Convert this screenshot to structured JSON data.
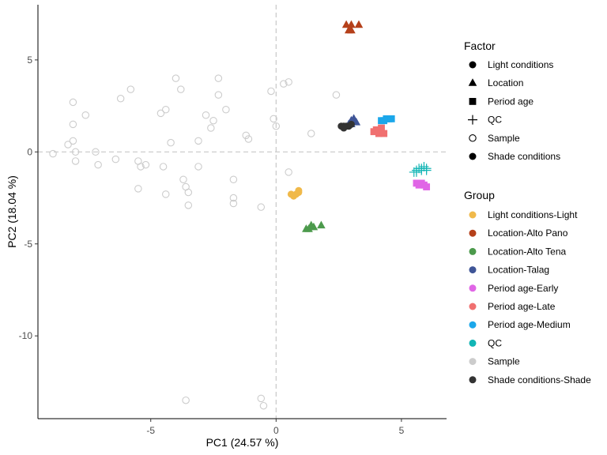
{
  "chart_data": {
    "type": "scatter",
    "title": "",
    "xlabel": "PC1 (24.57 %)",
    "ylabel": "PC2 (18.04 %)",
    "xlim": [
      -9.5,
      6.8
    ],
    "ylim": [
      -14.5,
      8.0
    ],
    "xticks": [
      -5,
      0,
      5
    ],
    "yticks": [
      -10,
      -5,
      0,
      5
    ],
    "xtick_labels": [
      "-5",
      "0",
      "5"
    ],
    "ytick_labels": [
      "-10",
      "-5",
      "0",
      "5"
    ],
    "grid": false,
    "reference_lines": {
      "x": 0,
      "y": 0,
      "style": "dashed"
    },
    "legend_placement": "right",
    "shape_legend": {
      "title": "Factor",
      "entries": [
        {
          "label": "Light conditions",
          "shape": "circle-filled"
        },
        {
          "label": "Location",
          "shape": "triangle"
        },
        {
          "label": "Period age",
          "shape": "square"
        },
        {
          "label": "QC",
          "shape": "plus"
        },
        {
          "label": "Sample",
          "shape": "circle-open"
        },
        {
          "label": "Shade conditions",
          "shape": "circle-filled"
        }
      ]
    },
    "color_legend": {
      "title": "Group",
      "entries": [
        {
          "label": "Light conditions-Light",
          "color": "#F0B94A"
        },
        {
          "label": "Location-Alto Pano",
          "color": "#B5401A"
        },
        {
          "label": "Location-Alto Tena",
          "color": "#4C9A4C"
        },
        {
          "label": "Location-Talag",
          "color": "#3F5597"
        },
        {
          "label": "Period age-Early",
          "color": "#E066E6"
        },
        {
          "label": "Period age-Late",
          "color": "#F07070"
        },
        {
          "label": "Period age-Medium",
          "color": "#1BA7EA"
        },
        {
          "label": "QC",
          "color": "#12B5B5"
        },
        {
          "label": "Sample",
          "color": "#CCCCCC"
        },
        {
          "label": "Shade conditions-Shade",
          "color": "#333333"
        }
      ]
    },
    "series": [
      {
        "group": "Sample",
        "shape": "circle-open",
        "color": "#CCCCCC",
        "points": [
          [
            -8.9,
            -0.1
          ],
          [
            -8.3,
            0.4
          ],
          [
            -8.1,
            2.7
          ],
          [
            -8.1,
            1.5
          ],
          [
            -8.1,
            0.6
          ],
          [
            -8.0,
            0.0
          ],
          [
            -8.0,
            -0.5
          ],
          [
            -7.6,
            2.0
          ],
          [
            -7.2,
            0.0
          ],
          [
            -7.1,
            -0.7
          ],
          [
            -6.4,
            -0.4
          ],
          [
            -6.2,
            2.9
          ],
          [
            -5.8,
            3.4
          ],
          [
            -5.5,
            -0.5
          ],
          [
            -5.4,
            -0.8
          ],
          [
            -5.5,
            -2.0
          ],
          [
            -5.2,
            -0.7
          ],
          [
            -4.6,
            2.1
          ],
          [
            -4.5,
            -0.8
          ],
          [
            -4.4,
            2.3
          ],
          [
            -4.4,
            -2.3
          ],
          [
            -4.2,
            0.5
          ],
          [
            -4.0,
            4.0
          ],
          [
            -3.8,
            3.4
          ],
          [
            -3.7,
            -1.5
          ],
          [
            -3.6,
            -1.9
          ],
          [
            -3.5,
            -2.2
          ],
          [
            -3.5,
            -2.9
          ],
          [
            -3.6,
            -13.5
          ],
          [
            -3.1,
            -0.8
          ],
          [
            -3.1,
            0.6
          ],
          [
            -2.8,
            2.0
          ],
          [
            -2.6,
            1.3
          ],
          [
            -2.5,
            1.7
          ],
          [
            -2.3,
            4.0
          ],
          [
            -2.3,
            3.1
          ],
          [
            -2.0,
            2.3
          ],
          [
            -1.7,
            -1.5
          ],
          [
            -1.7,
            -2.5
          ],
          [
            -1.7,
            -2.8
          ],
          [
            -1.2,
            0.9
          ],
          [
            -1.1,
            0.7
          ],
          [
            -0.6,
            -3.0
          ],
          [
            -0.6,
            -13.4
          ],
          [
            -0.5,
            -13.8
          ],
          [
            -0.2,
            3.3
          ],
          [
            -0.1,
            1.8
          ],
          [
            0.0,
            1.4
          ],
          [
            0.3,
            3.7
          ],
          [
            0.5,
            3.8
          ],
          [
            0.5,
            -1.1
          ],
          [
            1.4,
            1.0
          ],
          [
            2.4,
            3.1
          ]
        ]
      },
      {
        "group": "Light conditions-Light",
        "shape": "circle-filled",
        "color": "#F0B94A",
        "points": [
          [
            0.6,
            -2.3
          ],
          [
            0.7,
            -2.4
          ],
          [
            0.9,
            -2.2
          ],
          [
            0.9,
            -2.1
          ],
          [
            0.8,
            -2.3
          ]
        ]
      },
      {
        "group": "Location-Alto Pano",
        "shape": "triangle",
        "color": "#B5401A",
        "points": [
          [
            2.8,
            6.9
          ],
          [
            3.0,
            6.9
          ],
          [
            3.3,
            6.9
          ],
          [
            2.9,
            6.6
          ],
          [
            3.0,
            6.6
          ]
        ]
      },
      {
        "group": "Location-Alto Tena",
        "shape": "triangle",
        "color": "#4C9A4C",
        "points": [
          [
            1.2,
            -4.2
          ],
          [
            1.4,
            -4.0
          ],
          [
            1.5,
            -4.1
          ],
          [
            1.8,
            -4.0
          ],
          [
            1.3,
            -4.2
          ]
        ]
      },
      {
        "group": "Location-Talag",
        "shape": "triangle",
        "color": "#3F5597",
        "points": [
          [
            2.9,
            1.5
          ],
          [
            3.0,
            1.7
          ],
          [
            3.1,
            1.8
          ],
          [
            3.2,
            1.6
          ],
          [
            3.0,
            1.5
          ]
        ]
      },
      {
        "group": "Period age-Early",
        "shape": "square",
        "color": "#E066E6",
        "points": [
          [
            5.6,
            -1.7
          ],
          [
            5.8,
            -1.7
          ],
          [
            5.9,
            -1.8
          ],
          [
            6.0,
            -1.9
          ],
          [
            5.7,
            -1.8
          ]
        ]
      },
      {
        "group": "Period age-Late",
        "shape": "square",
        "color": "#F07070",
        "points": [
          [
            3.9,
            1.1
          ],
          [
            4.1,
            1.0
          ],
          [
            4.3,
            1.0
          ],
          [
            4.2,
            1.3
          ],
          [
            4.0,
            1.2
          ]
        ]
      },
      {
        "group": "Period age-Medium",
        "shape": "square",
        "color": "#1BA7EA",
        "points": [
          [
            4.2,
            1.7
          ],
          [
            4.4,
            1.8
          ],
          [
            4.5,
            1.8
          ],
          [
            4.6,
            1.8
          ],
          [
            4.3,
            1.7
          ]
        ]
      },
      {
        "group": "QC",
        "shape": "plus",
        "color": "#12B5B5",
        "points": [
          [
            5.5,
            -1.1
          ],
          [
            5.6,
            -1.0
          ],
          [
            5.7,
            -0.9
          ],
          [
            5.8,
            -0.9
          ],
          [
            5.9,
            -0.8
          ],
          [
            6.0,
            -0.9
          ],
          [
            5.8,
            -1.0
          ],
          [
            5.6,
            -1.1
          ],
          [
            6.0,
            -1.0
          ]
        ]
      },
      {
        "group": "Shade conditions-Shade",
        "shape": "circle-filled",
        "color": "#333333",
        "points": [
          [
            2.6,
            1.4
          ],
          [
            2.7,
            1.3
          ],
          [
            2.8,
            1.4
          ],
          [
            2.9,
            1.4
          ],
          [
            3.0,
            1.5
          ],
          [
            2.7,
            1.4
          ]
        ]
      }
    ]
  }
}
